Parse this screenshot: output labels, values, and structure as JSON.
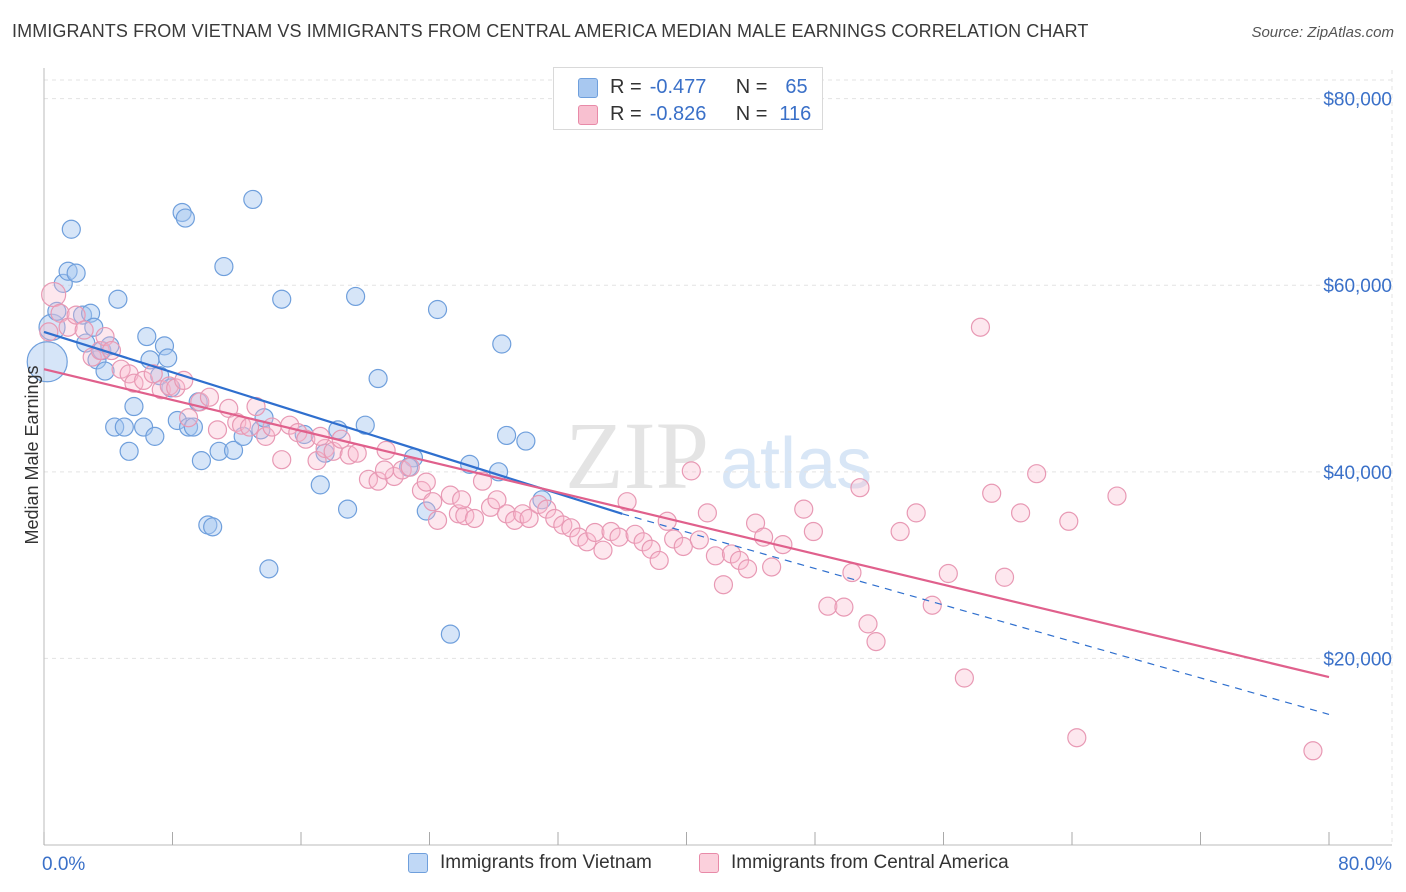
{
  "title": "IMMIGRANTS FROM VIETNAM VS IMMIGRANTS FROM CENTRAL AMERICA MEDIAN MALE EARNINGS CORRELATION CHART",
  "source": "Source: ZipAtlas.com",
  "watermark": {
    "part1": "ZIP",
    "part2": "atlas"
  },
  "stats": [
    {
      "r_label": "R =",
      "r_value": "-0.477",
      "n_label": "N =",
      "n_value": "65",
      "color": "#a8c8f0",
      "border": "#6f9fdc"
    },
    {
      "r_label": "R =",
      "r_value": "-0.826",
      "n_label": "N =",
      "n_value": "116",
      "color": "#f8c0d0",
      "border": "#e88aa8"
    }
  ],
  "legend": [
    {
      "label": "Immigrants from Vietnam",
      "color": "#c0d8f6",
      "border": "#6f9fdc"
    },
    {
      "label": "Immigrants from Central America",
      "color": "#fbd0dc",
      "border": "#e88aa8"
    }
  ],
  "colors": {
    "blue_fill": "rgba(165,198,240,0.45)",
    "blue_stroke": "#6f9fdc",
    "blue_line": "#2f6fce",
    "pink_fill": "rgba(248,185,205,0.35)",
    "pink_stroke": "#e899b4",
    "pink_line": "#e0608c",
    "axis_label_color": "#3a70c8"
  },
  "chart_data": {
    "type": "scatter",
    "title": "IMMIGRANTS FROM VIETNAM VS IMMIGRANTS FROM CENTRAL AMERICA MEDIAN MALE EARNINGS CORRELATION CHART",
    "xlabel": "",
    "ylabel": "Median Male Earnings",
    "xlim": [
      0,
      80
    ],
    "ylim": [
      0,
      82000
    ],
    "x_tick_labels": [
      "0.0%",
      "80.0%"
    ],
    "y_ticks": [
      20000,
      40000,
      60000,
      80000
    ],
    "y_tick_labels": [
      "$20,000",
      "$40,000",
      "$60,000",
      "$80,000"
    ],
    "grid": true,
    "legend_position": "bottom",
    "series": [
      {
        "name": "Immigrants from Vietnam",
        "r": -0.477,
        "n": 65,
        "trend": {
          "x0": 0,
          "y0": 55000,
          "x1": 36,
          "y1": 35500,
          "dashed_to_x": 80,
          "dashed_to_y": 14000
        },
        "points": [
          [
            0.2,
            51800
          ],
          [
            0.5,
            55500
          ],
          [
            0.8,
            57200
          ],
          [
            1.2,
            60200
          ],
          [
            1.5,
            61500
          ],
          [
            1.7,
            66000
          ],
          [
            2.0,
            61300
          ],
          [
            2.4,
            56800
          ],
          [
            2.6,
            53800
          ],
          [
            2.9,
            57000
          ],
          [
            3.1,
            55500
          ],
          [
            3.3,
            52000
          ],
          [
            3.6,
            53000
          ],
          [
            3.8,
            50800
          ],
          [
            4.1,
            53500
          ],
          [
            4.4,
            44800
          ],
          [
            4.6,
            58500
          ],
          [
            5.0,
            44800
          ],
          [
            5.3,
            42200
          ],
          [
            5.6,
            47000
          ],
          [
            6.2,
            44800
          ],
          [
            6.4,
            54500
          ],
          [
            6.6,
            52000
          ],
          [
            6.9,
            43800
          ],
          [
            7.2,
            50300
          ],
          [
            7.5,
            53500
          ],
          [
            7.7,
            52200
          ],
          [
            7.9,
            49000
          ],
          [
            8.3,
            45500
          ],
          [
            8.6,
            67800
          ],
          [
            8.8,
            67200
          ],
          [
            9.0,
            44800
          ],
          [
            9.3,
            44800
          ],
          [
            9.8,
            41200
          ],
          [
            9.6,
            47500
          ],
          [
            10.2,
            34300
          ],
          [
            10.5,
            34100
          ],
          [
            10.9,
            42200
          ],
          [
            11.2,
            62000
          ],
          [
            11.8,
            42300
          ],
          [
            12.4,
            43800
          ],
          [
            13.0,
            69200
          ],
          [
            13.5,
            44500
          ],
          [
            13.7,
            45800
          ],
          [
            14.0,
            29600
          ],
          [
            14.8,
            58500
          ],
          [
            16.2,
            44000
          ],
          [
            17.2,
            38600
          ],
          [
            18.3,
            44500
          ],
          [
            18.9,
            36000
          ],
          [
            19.4,
            58800
          ],
          [
            20.0,
            45000
          ],
          [
            20.8,
            50000
          ],
          [
            23.0,
            41500
          ],
          [
            23.8,
            35800
          ],
          [
            24.5,
            57400
          ],
          [
            25.3,
            22600
          ],
          [
            26.5,
            40800
          ],
          [
            28.3,
            40000
          ],
          [
            28.5,
            53700
          ],
          [
            28.8,
            43900
          ],
          [
            30.0,
            43300
          ],
          [
            31.0,
            37000
          ],
          [
            22.7,
            40500
          ],
          [
            17.5,
            42000
          ]
        ]
      },
      {
        "name": "Immigrants from Central America",
        "r": -0.826,
        "n": 116,
        "trend": {
          "x0": 0,
          "y0": 51000,
          "x1": 80,
          "y1": 18000
        },
        "points": [
          [
            0.3,
            55000
          ],
          [
            0.6,
            59000
          ],
          [
            1.0,
            57000
          ],
          [
            1.5,
            55500
          ],
          [
            2.0,
            56800
          ],
          [
            2.5,
            55200
          ],
          [
            3.0,
            52300
          ],
          [
            3.5,
            53000
          ],
          [
            3.8,
            54500
          ],
          [
            4.2,
            53000
          ],
          [
            4.8,
            51000
          ],
          [
            5.3,
            50500
          ],
          [
            5.6,
            49500
          ],
          [
            6.2,
            49800
          ],
          [
            6.8,
            50500
          ],
          [
            7.3,
            48800
          ],
          [
            7.8,
            49200
          ],
          [
            8.2,
            49000
          ],
          [
            8.7,
            49800
          ],
          [
            9.0,
            45800
          ],
          [
            9.7,
            47500
          ],
          [
            10.3,
            48000
          ],
          [
            10.8,
            44500
          ],
          [
            11.5,
            46800
          ],
          [
            12.0,
            45300
          ],
          [
            12.3,
            45000
          ],
          [
            12.8,
            44800
          ],
          [
            13.2,
            47000
          ],
          [
            13.8,
            43800
          ],
          [
            14.2,
            44800
          ],
          [
            14.8,
            41300
          ],
          [
            15.3,
            45000
          ],
          [
            15.8,
            44200
          ],
          [
            16.3,
            43500
          ],
          [
            17.0,
            41200
          ],
          [
            17.5,
            42500
          ],
          [
            18.0,
            42200
          ],
          [
            18.5,
            43500
          ],
          [
            19.0,
            41800
          ],
          [
            19.5,
            42000
          ],
          [
            20.2,
            39200
          ],
          [
            20.8,
            39000
          ],
          [
            21.3,
            42300
          ],
          [
            21.8,
            39500
          ],
          [
            22.3,
            40200
          ],
          [
            22.8,
            40500
          ],
          [
            23.5,
            38000
          ],
          [
            23.8,
            38900
          ],
          [
            24.2,
            36800
          ],
          [
            24.5,
            34800
          ],
          [
            25.3,
            37500
          ],
          [
            25.8,
            35500
          ],
          [
            26.2,
            35300
          ],
          [
            26.8,
            35000
          ],
          [
            27.3,
            39000
          ],
          [
            27.8,
            36200
          ],
          [
            28.2,
            37000
          ],
          [
            28.8,
            35500
          ],
          [
            29.3,
            34800
          ],
          [
            29.8,
            35500
          ],
          [
            30.2,
            35000
          ],
          [
            30.8,
            36500
          ],
          [
            31.3,
            36000
          ],
          [
            31.8,
            35000
          ],
          [
            32.3,
            34300
          ],
          [
            32.8,
            34000
          ],
          [
            33.3,
            33000
          ],
          [
            33.8,
            32500
          ],
          [
            34.3,
            33500
          ],
          [
            34.8,
            31600
          ],
          [
            35.3,
            33600
          ],
          [
            35.8,
            33000
          ],
          [
            36.3,
            36800
          ],
          [
            36.8,
            33300
          ],
          [
            37.3,
            32500
          ],
          [
            37.8,
            31700
          ],
          [
            38.3,
            30500
          ],
          [
            38.8,
            34700
          ],
          [
            39.2,
            32800
          ],
          [
            39.8,
            32000
          ],
          [
            40.3,
            40100
          ],
          [
            40.8,
            32700
          ],
          [
            41.3,
            35600
          ],
          [
            41.8,
            31000
          ],
          [
            42.3,
            27900
          ],
          [
            42.8,
            31200
          ],
          [
            43.3,
            30500
          ],
          [
            43.8,
            29600
          ],
          [
            44.3,
            34500
          ],
          [
            44.8,
            33000
          ],
          [
            45.3,
            29800
          ],
          [
            46.0,
            32200
          ],
          [
            47.3,
            36000
          ],
          [
            47.9,
            33600
          ],
          [
            48.8,
            25600
          ],
          [
            49.8,
            25500
          ],
          [
            50.3,
            29200
          ],
          [
            50.8,
            38300
          ],
          [
            51.3,
            23700
          ],
          [
            51.8,
            21800
          ],
          [
            53.3,
            33600
          ],
          [
            54.3,
            35600
          ],
          [
            55.3,
            25700
          ],
          [
            56.3,
            29100
          ],
          [
            57.3,
            17900
          ],
          [
            58.3,
            55500
          ],
          [
            59.0,
            37700
          ],
          [
            59.8,
            28700
          ],
          [
            60.8,
            35600
          ],
          [
            61.8,
            39800
          ],
          [
            63.8,
            34700
          ],
          [
            64.3,
            11500
          ],
          [
            66.8,
            37400
          ],
          [
            79.0,
            10100
          ],
          [
            17.2,
            43800
          ],
          [
            26.0,
            37000
          ],
          [
            21.2,
            40200
          ]
        ]
      }
    ]
  }
}
